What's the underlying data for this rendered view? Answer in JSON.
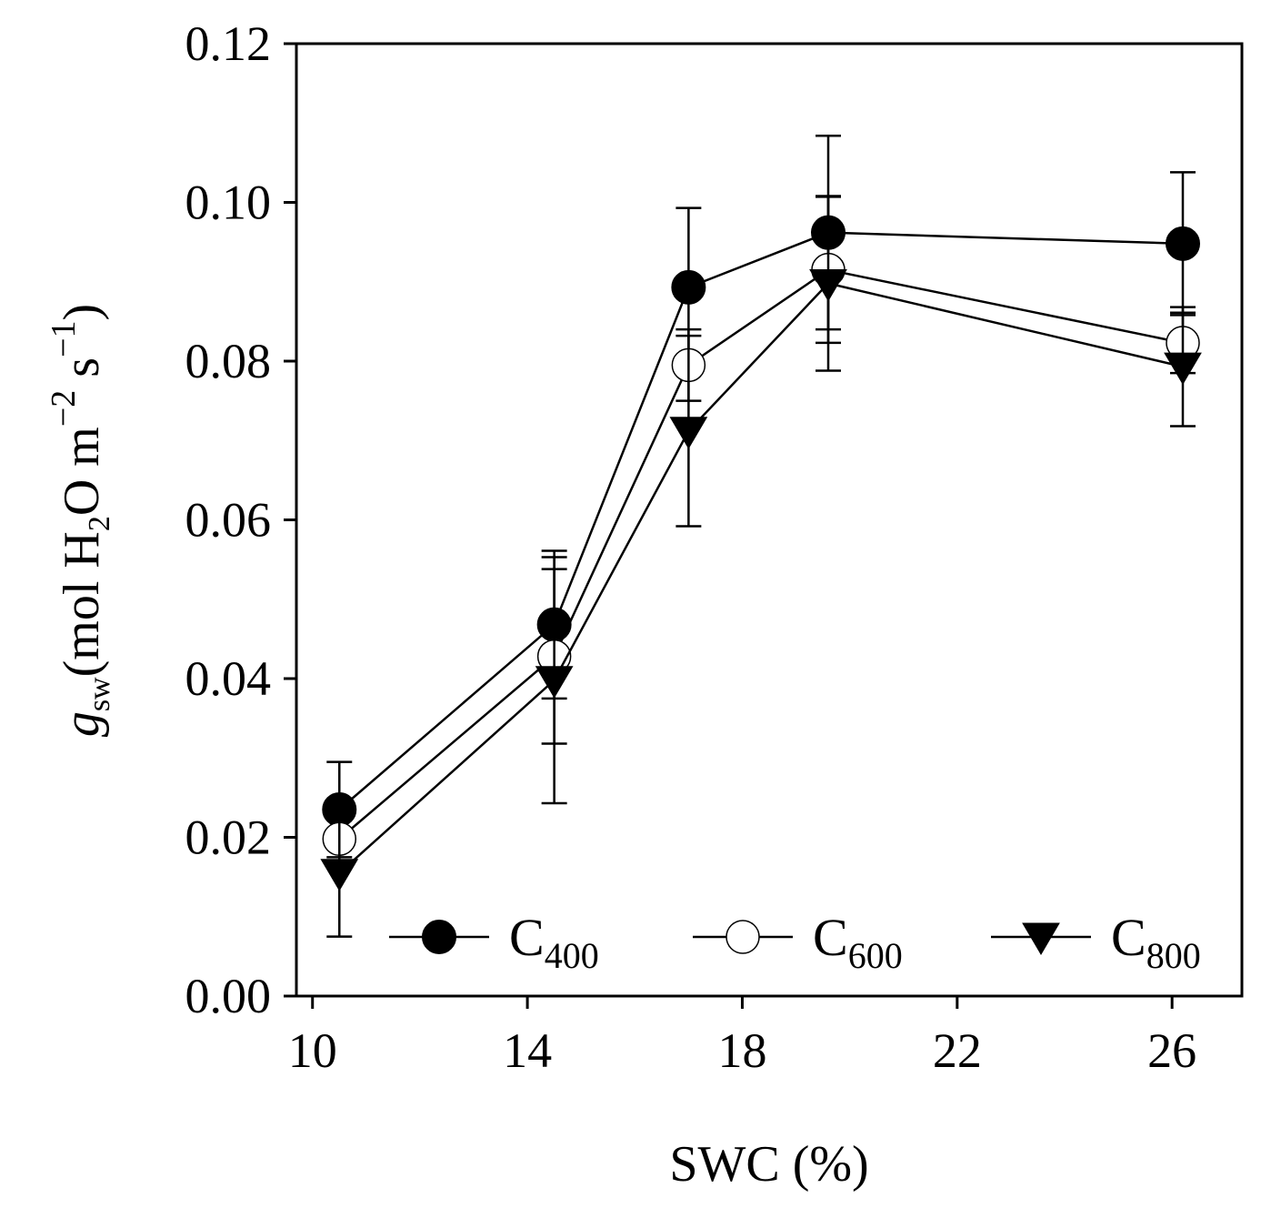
{
  "chart_data": {
    "type": "line",
    "title": "",
    "xlabel": "SWC (%)",
    "ylabel": {
      "symbol": "g",
      "symbol_sub": "sw",
      "units_open": "(mol H",
      "units_h2_sub": "2",
      "units_o_m": "O m",
      "units_m_sup": "−2",
      "units_s": " s",
      "units_s_sup": "−1",
      "units_close": ")"
    },
    "xlim": [
      9.7,
      27.3
    ],
    "ylim": [
      0,
      0.12
    ],
    "xticks": [
      10,
      14,
      18,
      22,
      26
    ],
    "xtick_labels": [
      "10",
      "14",
      "18",
      "22",
      "26"
    ],
    "yticks": [
      0,
      0.02,
      0.04,
      0.06,
      0.08,
      0.1,
      0.12
    ],
    "ytick_labels": [
      "0.00",
      "0.02",
      "0.04",
      "0.06",
      "0.08",
      "0.10",
      "0.12"
    ],
    "x": [
      10.5,
      14.5,
      17.0,
      19.6,
      26.2
    ],
    "grid": false,
    "legend_position": "bottom-inside",
    "series": [
      {
        "name": "C",
        "name_sub": "400",
        "marker": "filled-circle",
        "color": "#000000",
        "values": [
          0.0235,
          0.0468,
          0.0893,
          0.0962,
          0.0948
        ],
        "errors": [
          0.006,
          0.0093,
          0.01,
          0.0122,
          0.009
        ]
      },
      {
        "name": "C",
        "name_sub": "600",
        "marker": "open-circle",
        "color": "#000000",
        "values": [
          0.0198,
          0.0428,
          0.0795,
          0.0915,
          0.0823
        ],
        "errors": [
          0.003,
          0.011,
          0.0045,
          0.0092,
          0.0038
        ]
      },
      {
        "name": "C",
        "name_sub": "800",
        "marker": "filled-triangle-down",
        "color": "#000000",
        "values": [
          0.0155,
          0.0398,
          0.0712,
          0.0898,
          0.0793
        ],
        "errors": [
          0.008,
          0.0155,
          0.012,
          0.011,
          0.0075
        ]
      }
    ]
  }
}
